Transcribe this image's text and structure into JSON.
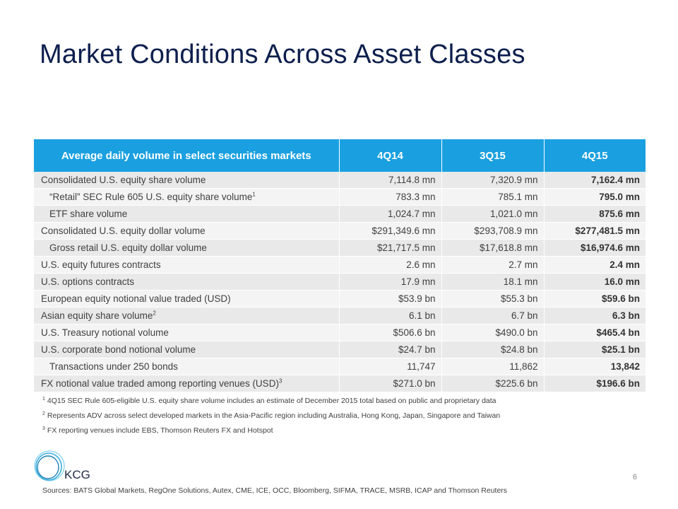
{
  "title": "Market Conditions Across Asset Classes",
  "table": {
    "headers": [
      "Average daily volume in select securities markets",
      "4Q14",
      "3Q15",
      "4Q15"
    ],
    "rows": [
      {
        "label": "Consolidated U.S. equity share volume",
        "sup": "",
        "indent": false,
        "values": [
          "7,114.8 mn",
          "7,320.9 mn",
          "7,162.4 mn"
        ]
      },
      {
        "label": "“Retail” SEC Rule 605 U.S. equity share volume",
        "sup": "1",
        "indent": true,
        "values": [
          "783.3 mn",
          "785.1 mn",
          "795.0 mn"
        ]
      },
      {
        "label": "ETF share volume",
        "sup": "",
        "indent": true,
        "values": [
          "1,024.7 mn",
          "1,021.0 mn",
          "875.6 mn"
        ]
      },
      {
        "label": "Consolidated U.S. equity dollar volume",
        "sup": "",
        "indent": false,
        "values": [
          "$291,349.6 mn",
          "$293,708.9 mn",
          "$277,481.5 mn"
        ]
      },
      {
        "label": "Gross retail U.S. equity dollar volume",
        "sup": "",
        "indent": true,
        "values": [
          "$21,717.5 mn",
          "$17,618.8 mn",
          "$16,974.6 mn"
        ]
      },
      {
        "label": "U.S. equity futures contracts",
        "sup": "",
        "indent": false,
        "values": [
          "2.6 mn",
          "2.7 mn",
          "2.4 mn"
        ]
      },
      {
        "label": "U.S. options contracts",
        "sup": "",
        "indent": false,
        "values": [
          "17.9 mn",
          "18.1 mn",
          "16.0 mn"
        ]
      },
      {
        "label": "European equity notional value traded (USD)",
        "sup": "",
        "indent": false,
        "values": [
          "$53.9 bn",
          "$55.3 bn",
          "$59.6 bn"
        ]
      },
      {
        "label": "Asian equity share volume",
        "sup": "2",
        "indent": false,
        "values": [
          "6.1 bn",
          "6.7 bn",
          "6.3 bn"
        ]
      },
      {
        "label": "U.S. Treasury notional volume",
        "sup": "",
        "indent": false,
        "values": [
          "$506.6 bn",
          "$490.0 bn",
          "$465.4 bn"
        ]
      },
      {
        "label": "U.S. corporate bond notional volume",
        "sup": "",
        "indent": false,
        "values": [
          "$24.7 bn",
          "$24.8 bn",
          "$25.1 bn"
        ]
      },
      {
        "label": "Transactions under 250 bonds",
        "sup": "",
        "indent": true,
        "values": [
          "11,747",
          "11,862",
          "13,842"
        ]
      },
      {
        "label": "FX notional value traded among reporting venues (USD)",
        "sup": "3",
        "indent": false,
        "values": [
          "$271.0 bn",
          "$225.6 bn",
          "$196.6 bn"
        ]
      }
    ]
  },
  "footnotes": [
    {
      "num": "1",
      "text": "4Q15 SEC Rule 605-eligible U.S. equity share volume  includes an estimate of December 2015 total based on public and proprietary data"
    },
    {
      "num": "2",
      "text": "Represents ADV across select developed markets in the Asia-Pacific region including Australia, Hong Kong, Japan, Singapore and Taiwan"
    },
    {
      "num": "3",
      "text": "FX reporting venues include EBS, Thomson Reuters FX and Hotspot"
    }
  ],
  "logo_text": "KCG",
  "page_number": "6",
  "sources": "Sources: BATS Global Markets, RegOne Solutions, Autex, CME, ICE, OCC, Bloomberg, SIFMA, TRACE, MSRB, ICAP and Thomson Reuters",
  "colors": {
    "title": "#0d1f4d",
    "header_bg": "#1aa0e0",
    "row_odd": "#e9e9e9",
    "row_even": "#f4f4f4"
  }
}
